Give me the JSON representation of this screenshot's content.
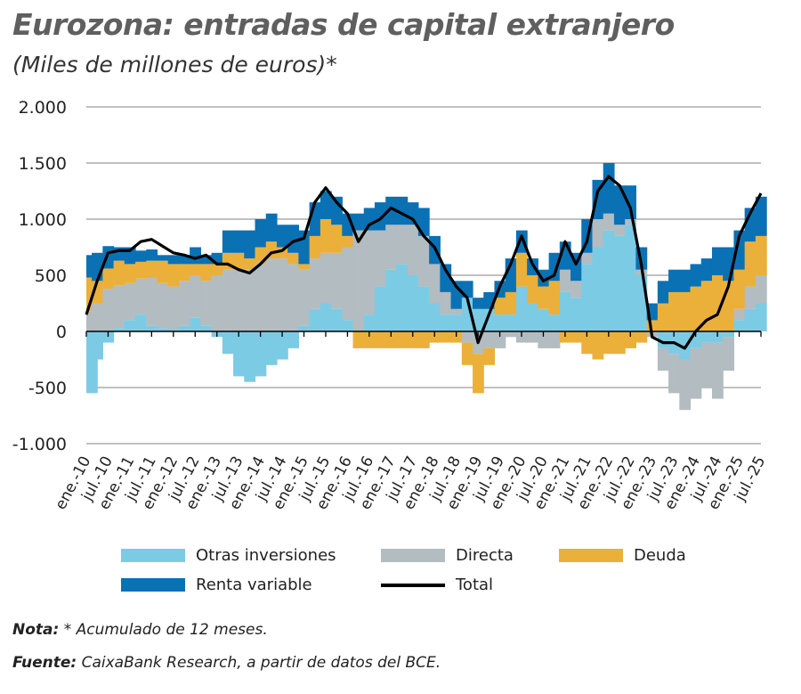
{
  "title": "Eurozona: entradas de capital extranjero",
  "subtitle": "(Miles de millones de euros)*",
  "note_label": "Nota:",
  "note_text": "* Acumulado de 12 meses.",
  "source_label": "Fuente:",
  "source_text": "CaixaBank Research, a partir de datos del BCE.",
  "chart_data": {
    "type": "bar",
    "stacked": true,
    "title": "Eurozona: entradas de capital extranjero",
    "ylabel": "",
    "xlabel": "",
    "ylim": [
      -1000,
      2000
    ],
    "yticks": [
      2000,
      1500,
      1000,
      500,
      0,
      -500,
      -1000
    ],
    "ytick_labels": [
      "2.000",
      "1.500",
      "1.000",
      "500",
      "0",
      "-500",
      "-1.000"
    ],
    "grid": true,
    "legend": "bottom",
    "xtick_labels": [
      "ene.-10",
      "jul.-10",
      "ene.-11",
      "jul.-11",
      "ene.-12",
      "jul.-12",
      "ene.-13",
      "jul.-13",
      "ene.-14",
      "jul.-14",
      "ene.-15",
      "jul.-15",
      "ene.-16",
      "jul.-16",
      "ene.-17",
      "jul.-17",
      "ene.-18",
      "jul.-18",
      "ene.-19",
      "jul.-19",
      "ene.-20",
      "jul.-20",
      "ene.-21",
      "jul.-21",
      "ene.-22",
      "jul.-22",
      "ene.-23",
      "jul.-23",
      "ene.-24",
      "jul.-24",
      "ene.-25",
      "jul.-25"
    ],
    "categories": [
      "ene.-10",
      "abr.-10",
      "jul.-10",
      "oct.-10",
      "ene.-11",
      "abr.-11",
      "jul.-11",
      "oct.-11",
      "ene.-12",
      "abr.-12",
      "jul.-12",
      "oct.-12",
      "ene.-13",
      "abr.-13",
      "jul.-13",
      "oct.-13",
      "ene.-14",
      "abr.-14",
      "jul.-14",
      "oct.-14",
      "ene.-15",
      "abr.-15",
      "jul.-15",
      "oct.-15",
      "ene.-16",
      "abr.-16",
      "jul.-16",
      "oct.-16",
      "ene.-17",
      "abr.-17",
      "jul.-17",
      "oct.-17",
      "ene.-18",
      "abr.-18",
      "jul.-18",
      "oct.-18",
      "ene.-19",
      "abr.-19",
      "jul.-19",
      "oct.-19",
      "ene.-20",
      "abr.-20",
      "jul.-20",
      "oct.-20",
      "ene.-21",
      "abr.-21",
      "jul.-21",
      "oct.-21",
      "ene.-22",
      "abr.-22",
      "jul.-22",
      "oct.-22",
      "ene.-23",
      "abr.-23",
      "jul.-23",
      "oct.-23",
      "ene.-24",
      "abr.-24",
      "jul.-24",
      "oct.-24",
      "ene.-25",
      "abr.-25",
      "jul.-25"
    ],
    "series": [
      {
        "name": "Otras inversiones",
        "color": "#7ccbe5",
        "kind": "bar",
        "values": [
          -550,
          -250,
          -100,
          30,
          100,
          150,
          50,
          30,
          20,
          50,
          120,
          50,
          -50,
          -200,
          -400,
          -450,
          -400,
          -300,
          -250,
          -150,
          50,
          200,
          250,
          200,
          100,
          0,
          150,
          400,
          550,
          600,
          500,
          400,
          250,
          150,
          150,
          300,
          200,
          200,
          150,
          150,
          400,
          250,
          200,
          150,
          350,
          300,
          600,
          750,
          900,
          850,
          950,
          500,
          0,
          -150,
          -200,
          -250,
          -150,
          -100,
          -100,
          -50,
          100,
          200,
          250
        ]
      },
      {
        "name": "Directa",
        "color": "#b3bcc0",
        "kind": "bar",
        "values": [
          180,
          250,
          380,
          380,
          330,
          320,
          430,
          400,
          380,
          400,
          380,
          400,
          500,
          550,
          550,
          550,
          600,
          650,
          650,
          600,
          500,
          450,
          450,
          500,
          650,
          900,
          750,
          500,
          400,
          350,
          450,
          450,
          350,
          200,
          50,
          -100,
          -200,
          -150,
          -150,
          -50,
          -100,
          -100,
          -150,
          -150,
          200,
          150,
          100,
          250,
          150,
          100,
          50,
          50,
          -50,
          -200,
          -350,
          -450,
          -450,
          -400,
          -500,
          -300,
          100,
          200,
          250
        ]
      },
      {
        "name": "Deuda",
        "color": "#ebb03a",
        "kind": "bar",
        "values": [
          300,
          200,
          180,
          220,
          170,
          150,
          150,
          200,
          200,
          150,
          100,
          150,
          100,
          150,
          150,
          100,
          150,
          150,
          100,
          100,
          50,
          200,
          300,
          250,
          100,
          -150,
          -150,
          -150,
          -150,
          -150,
          -150,
          -150,
          -100,
          -100,
          -100,
          -200,
          -350,
          -150,
          150,
          200,
          300,
          250,
          200,
          300,
          -100,
          -100,
          -200,
          -250,
          -200,
          -200,
          -150,
          -100,
          100,
          250,
          350,
          350,
          400,
          450,
          500,
          450,
          350,
          400,
          350
        ]
      },
      {
        "name": "Renta variable",
        "color": "#0a71b4",
        "kind": "bar",
        "values": [
          200,
          250,
          200,
          120,
          150,
          100,
          100,
          50,
          80,
          80,
          150,
          80,
          100,
          200,
          200,
          250,
          250,
          250,
          200,
          250,
          300,
          300,
          250,
          250,
          200,
          150,
          200,
          250,
          250,
          250,
          200,
          250,
          250,
          250,
          250,
          150,
          100,
          150,
          150,
          300,
          200,
          150,
          150,
          250,
          250,
          250,
          300,
          350,
          450,
          350,
          300,
          200,
          150,
          200,
          200,
          200,
          200,
          200,
          250,
          300,
          350,
          300,
          350
        ]
      },
      {
        "name": "Total",
        "color": "#000000",
        "kind": "line",
        "values": [
          150,
          450,
          700,
          720,
          720,
          800,
          820,
          760,
          700,
          680,
          650,
          680,
          600,
          600,
          550,
          520,
          600,
          700,
          720,
          800,
          830,
          1150,
          1280,
          1150,
          1050,
          800,
          950,
          1000,
          1100,
          1050,
          1000,
          850,
          750,
          550,
          400,
          300,
          -100,
          150,
          400,
          600,
          850,
          600,
          450,
          500,
          800,
          600,
          800,
          1250,
          1380,
          1300,
          1100,
          600,
          -50,
          -100,
          -100,
          -150,
          0,
          100,
          150,
          400,
          850,
          1050,
          1230
        ]
      }
    ]
  }
}
